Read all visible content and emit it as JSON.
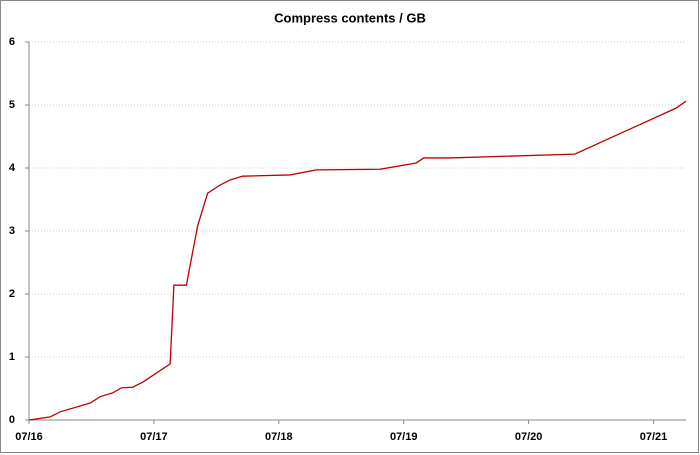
{
  "chart_data": {
    "type": "line",
    "title": "Compress contents / GB",
    "x": [
      0,
      0.17,
      0.25,
      0.49,
      0.57,
      0.67,
      0.74,
      0.83,
      0.91,
      1.13,
      1.16,
      1.26,
      1.35,
      1.43,
      1.53,
      1.61,
      1.71,
      2.09,
      2.3,
      2.81,
      3.1,
      3.16,
      3.37,
      4.37,
      5.18,
      5.26
    ],
    "series": [
      {
        "name": "Compress contents",
        "color": "#c00000",
        "values": [
          0,
          0.05,
          0.13,
          0.27,
          0.37,
          0.43,
          0.51,
          0.52,
          0.6,
          0.89,
          2.14,
          2.14,
          3.08,
          3.6,
          3.73,
          3.81,
          3.87,
          3.89,
          3.97,
          3.98,
          4.08,
          4.16,
          4.16,
          4.22,
          4.95,
          5.06
        ]
      }
    ],
    "xlim": [
      0,
      5.26
    ],
    "xticks": [
      {
        "value": 0,
        "label": "07/16"
      },
      {
        "value": 1,
        "label": "07/17"
      },
      {
        "value": 2,
        "label": "07/18"
      },
      {
        "value": 3,
        "label": "07/19"
      },
      {
        "value": 4,
        "label": "07/20"
      },
      {
        "value": 5,
        "label": "07/21"
      }
    ],
    "ylim": [
      0,
      6
    ],
    "yticks": [
      0,
      1,
      2,
      3,
      4,
      5,
      6
    ],
    "grid": true
  }
}
